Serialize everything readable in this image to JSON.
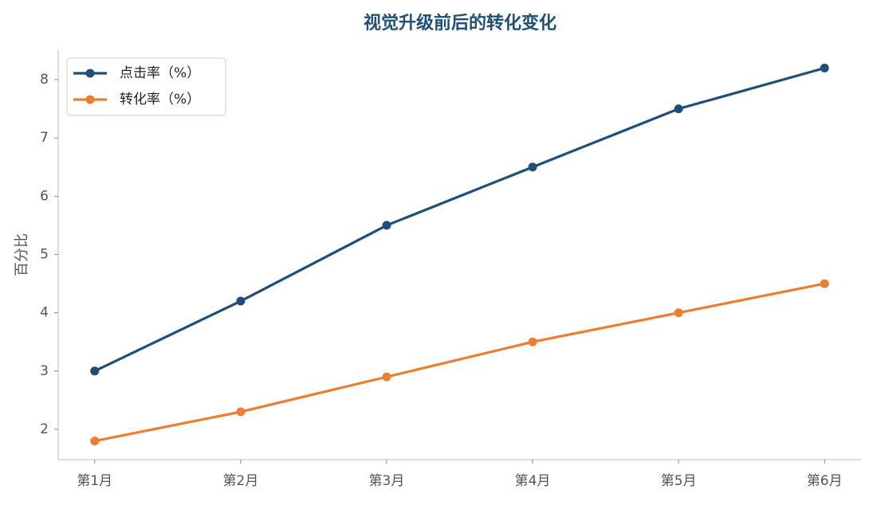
{
  "chart_data": {
    "type": "line",
    "title": "视觉升级前后的转化变化",
    "y_label": "百分比",
    "categories": [
      "第1月",
      "第2月",
      "第3月",
      "第4月",
      "第5月",
      "第6月"
    ],
    "series": [
      {
        "name": "点击率（%）",
        "color": "#1f4e79",
        "values": [
          3,
          4.2,
          5.5,
          6.5,
          7.5,
          8.2
        ]
      },
      {
        "name": "转化率（%）",
        "color": "#ed7d31",
        "values": [
          1.8,
          2.3,
          2.9,
          3.5,
          4.0,
          4.5
        ]
      }
    ],
    "ylim": [
      1.48,
      8.52
    ],
    "yticks": [
      2,
      3,
      4,
      5,
      6,
      7,
      8
    ],
    "legend": "upper left",
    "grid": false
  }
}
